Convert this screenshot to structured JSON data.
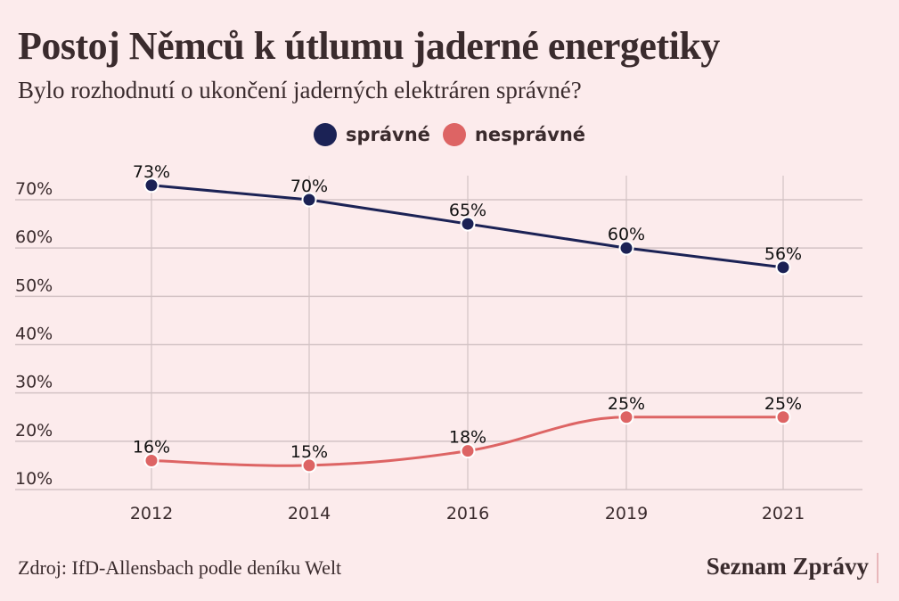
{
  "header": {
    "title": "Postoj Němců k útlumu jaderné energetiky",
    "subtitle": "Bylo rozhodnutí o ukončení jaderných elektráren správné?"
  },
  "footer": {
    "source": "Zdroj: IfD-Allensbach podle deníku Welt",
    "brand": "Seznam Zprávy"
  },
  "chart_data": {
    "type": "line",
    "title": "Postoj Němců k útlumu jaderné energetiky",
    "subtitle": "Bylo rozhodnutí o ukončení jaderných elektráren správné?",
    "xlabel": "",
    "ylabel": "",
    "x": [
      "2012",
      "2014",
      "2016",
      "2019",
      "2021"
    ],
    "ylim": [
      10,
      70
    ],
    "yticks": [
      10,
      20,
      30,
      40,
      50,
      60,
      70
    ],
    "ytick_labels": [
      "10%",
      "20%",
      "30%",
      "40%",
      "50%",
      "60%",
      "70%"
    ],
    "grid": true,
    "legend_position": "top-center",
    "series": [
      {
        "name": "správné",
        "color": "#1b2255",
        "values": [
          73,
          70,
          65,
          60,
          56
        ],
        "labels": [
          "73%",
          "70%",
          "65%",
          "60%",
          "56%"
        ]
      },
      {
        "name": "nesprávné",
        "color": "#dd6464",
        "values": [
          16,
          15,
          18,
          25,
          25
        ],
        "labels": [
          "16%",
          "15%",
          "18%",
          "25%",
          "25%"
        ]
      }
    ]
  }
}
